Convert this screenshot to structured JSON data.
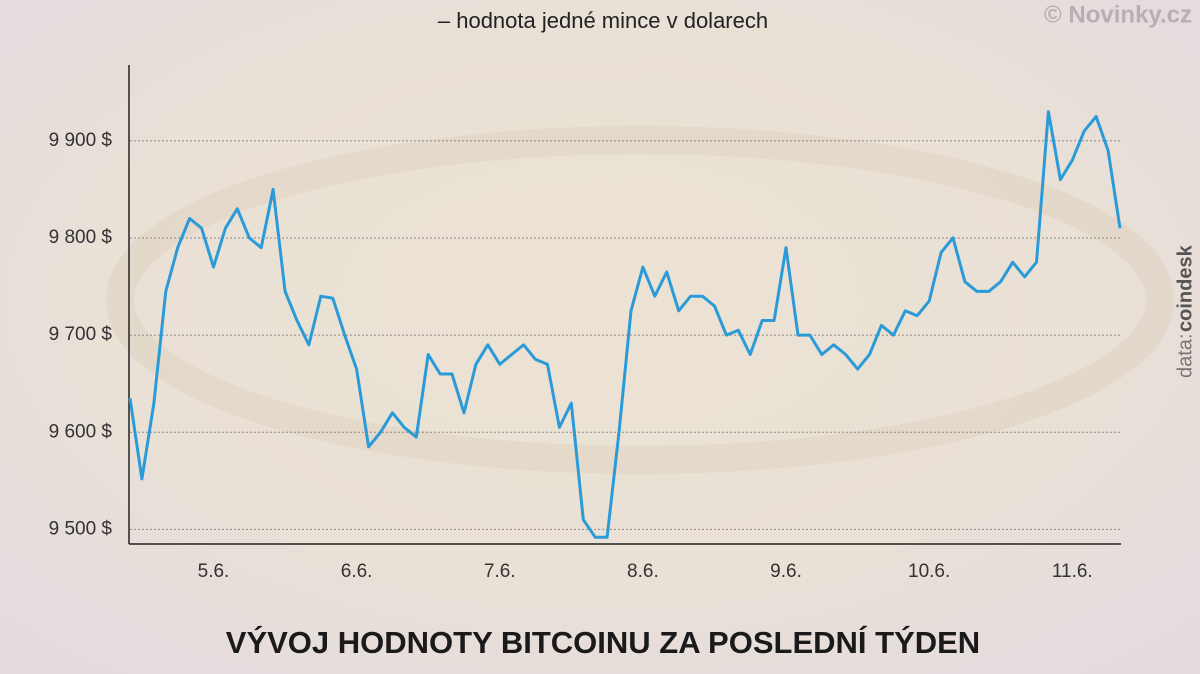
{
  "chart_data": {
    "type": "line",
    "title": "VÝVOJ HODNOTY BITCOINU ZA POSLEDNÍ TÝDEN",
    "subtitle": "– hodnota jedné mince v dolarech",
    "watermark": "© Novinky.cz",
    "source_label": "data:",
    "source": "coindesk",
    "categories": [
      null,
      null,
      null,
      null,
      null,
      null,
      null,
      "5.6.",
      null,
      null,
      null,
      null,
      null,
      null,
      null,
      null,
      null,
      null,
      null,
      "6.6.",
      null,
      null,
      null,
      null,
      null,
      null,
      null,
      null,
      null,
      null,
      null,
      "7.6.",
      null,
      null,
      null,
      null,
      null,
      null,
      null,
      null,
      null,
      null,
      null,
      "8.6.",
      null,
      null,
      null,
      null,
      null,
      null,
      null,
      null,
      null,
      null,
      null,
      "9.6.",
      null,
      null,
      null,
      null,
      null,
      null,
      null,
      null,
      null,
      null,
      null,
      "10.6.",
      null,
      null,
      null,
      null,
      null,
      null,
      null,
      null,
      null,
      null,
      null,
      "11.6.",
      null,
      null,
      null,
      null
    ],
    "series": [
      {
        "name": "BTC",
        "color": "#2b9bd8",
        "values": [
          9635,
          9552,
          9630,
          9745,
          9790,
          9820,
          9810,
          9770,
          9810,
          9830,
          9800,
          9790,
          9850,
          9745,
          9715,
          9690,
          9740,
          9738,
          9700,
          9665,
          9585,
          9600,
          9620,
          9605,
          9595,
          9680,
          9660,
          9660,
          9620,
          9670,
          9690,
          9670,
          9680,
          9690,
          9675,
          9670,
          9605,
          9630,
          9510,
          9492,
          9492,
          9600,
          9725,
          9770,
          9740,
          9765,
          9725,
          9740,
          9740,
          9730,
          9700,
          9705,
          9680,
          9715,
          9715,
          9790,
          9700,
          9700,
          9680,
          9690,
          9680,
          9665,
          9680,
          9710,
          9700,
          9725,
          9720,
          9735,
          9785,
          9800,
          9755,
          9745,
          9745,
          9755,
          9775,
          9760,
          9775,
          9930,
          9860,
          9880,
          9910,
          9925,
          9890,
          9810
        ]
      }
    ],
    "ylim": [
      9485,
      9978
    ],
    "yticks": [
      {
        "value": 9500,
        "label": "9 500 $"
      },
      {
        "value": 9600,
        "label": "9 600 $"
      },
      {
        "value": 9700,
        "label": "9 700 $"
      },
      {
        "value": 9800,
        "label": "9 800 $"
      },
      {
        "value": 9900,
        "label": "9 900 $"
      }
    ],
    "grid": true
  }
}
